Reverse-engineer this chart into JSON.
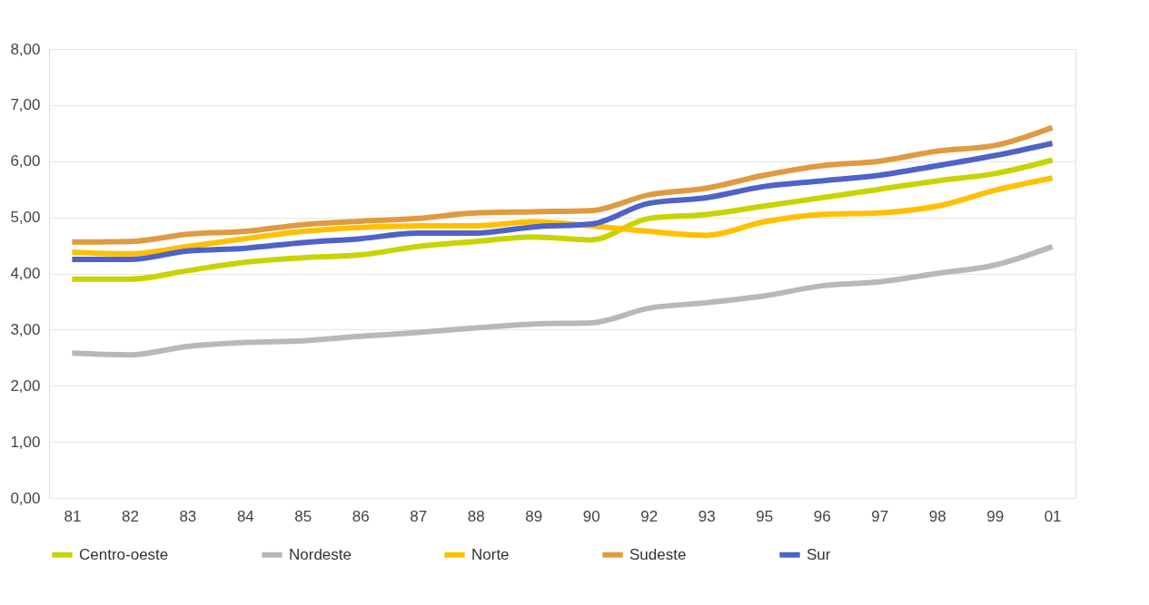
{
  "chart_data": {
    "type": "line",
    "categories": [
      "81",
      "82",
      "83",
      "84",
      "85",
      "86",
      "87",
      "88",
      "89",
      "90",
      "92",
      "93",
      "95",
      "96",
      "97",
      "98",
      "99",
      "01"
    ],
    "series": [
      {
        "name": "Centro-oeste",
        "color": "#c8d400",
        "values": [
          3.9,
          3.9,
          4.05,
          4.2,
          4.28,
          4.33,
          4.48,
          4.57,
          4.65,
          4.6,
          4.98,
          5.05,
          5.2,
          5.35,
          5.5,
          5.65,
          5.78,
          6.02
        ]
      },
      {
        "name": "Nordeste",
        "color": "#b8b8b8",
        "values": [
          2.58,
          2.55,
          2.7,
          2.77,
          2.8,
          2.88,
          2.95,
          3.03,
          3.1,
          3.12,
          3.38,
          3.48,
          3.6,
          3.78,
          3.85,
          4.0,
          4.15,
          4.48
        ]
      },
      {
        "name": "Norte",
        "color": "#ffc000",
        "values": [
          4.38,
          4.35,
          4.48,
          4.62,
          4.75,
          4.82,
          4.85,
          4.85,
          4.92,
          4.85,
          4.75,
          4.68,
          4.92,
          5.05,
          5.08,
          5.2,
          5.48,
          5.7
        ]
      },
      {
        "name": "Sudeste",
        "color": "#e09a40",
        "values": [
          4.56,
          4.57,
          4.7,
          4.75,
          4.87,
          4.93,
          4.98,
          5.08,
          5.1,
          5.12,
          5.4,
          5.52,
          5.75,
          5.92,
          6.0,
          6.18,
          6.28,
          6.6
        ]
      },
      {
        "name": "Sur",
        "color": "#4f62c8",
        "values": [
          4.25,
          4.25,
          4.4,
          4.45,
          4.55,
          4.62,
          4.72,
          4.72,
          4.83,
          4.88,
          5.25,
          5.35,
          5.55,
          5.65,
          5.75,
          5.92,
          6.1,
          6.32
        ]
      }
    ],
    "ylim": [
      0,
      8
    ],
    "yticks": [
      {
        "value": 0,
        "label": "0,00"
      },
      {
        "value": 1,
        "label": "1,00"
      },
      {
        "value": 2,
        "label": "2,00"
      },
      {
        "value": 3,
        "label": "3,00"
      },
      {
        "value": 4,
        "label": "4,00"
      },
      {
        "value": 5,
        "label": "5,00"
      },
      {
        "value": 6,
        "label": "6,00"
      },
      {
        "value": 7,
        "label": "7,00"
      },
      {
        "value": 8,
        "label": "8,00"
      }
    ],
    "grid": "y",
    "legend": "bottom",
    "marker": "none",
    "line_style": "solid"
  }
}
